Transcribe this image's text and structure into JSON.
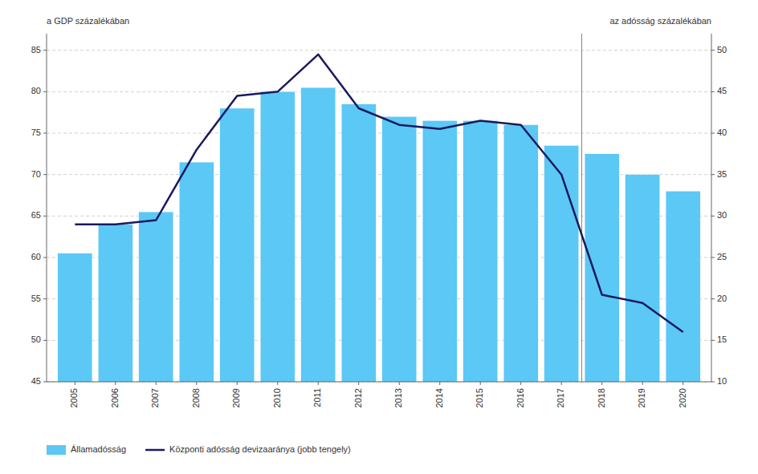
{
  "chart_data": {
    "type": "bar",
    "x": [
      2005,
      2006,
      2007,
      2008,
      2009,
      2010,
      2011,
      2012,
      2013,
      2014,
      2015,
      2016,
      2017,
      2018,
      2019,
      2020
    ],
    "xlim": [
      2004.3,
      2020.7
    ],
    "xticks": [
      2005,
      2006,
      2007,
      2008,
      2009,
      2010,
      2011,
      2012,
      2013,
      2014,
      2015,
      2016,
      2017,
      2018,
      2019,
      2020
    ],
    "series": [
      {
        "name": "Államadósság",
        "type": "bar",
        "color": "#5bc8f5",
        "values": [
          60.5,
          64.0,
          65.5,
          71.5,
          78.0,
          80.0,
          80.5,
          78.5,
          77.0,
          76.5,
          76.5,
          76.0,
          73.5,
          72.5,
          70.0,
          68.0
        ]
      },
      {
        "name": "Központi adósság devizaaránya (jobb tengely)",
        "type": "line",
        "color": "#1a1a5e",
        "axis": "y2",
        "values": [
          29.0,
          29.0,
          29.5,
          38.0,
          44.5,
          45.0,
          49.5,
          43.0,
          41.0,
          40.5,
          41.5,
          41.0,
          35.0,
          20.5,
          19.5,
          16.0
        ]
      }
    ],
    "y_label": "a GDP százalékában",
    "y2_label": "az adósság százalékában",
    "ylim": [
      45,
      87
    ],
    "yticks": [
      45,
      50,
      55,
      60,
      65,
      70,
      75,
      80,
      85
    ],
    "y2lim": [
      10,
      52
    ],
    "y2ticks": [
      10,
      15,
      20,
      25,
      30,
      35,
      40,
      45,
      50
    ],
    "vline": 2017.5,
    "grid": true,
    "legend": "bottom"
  }
}
